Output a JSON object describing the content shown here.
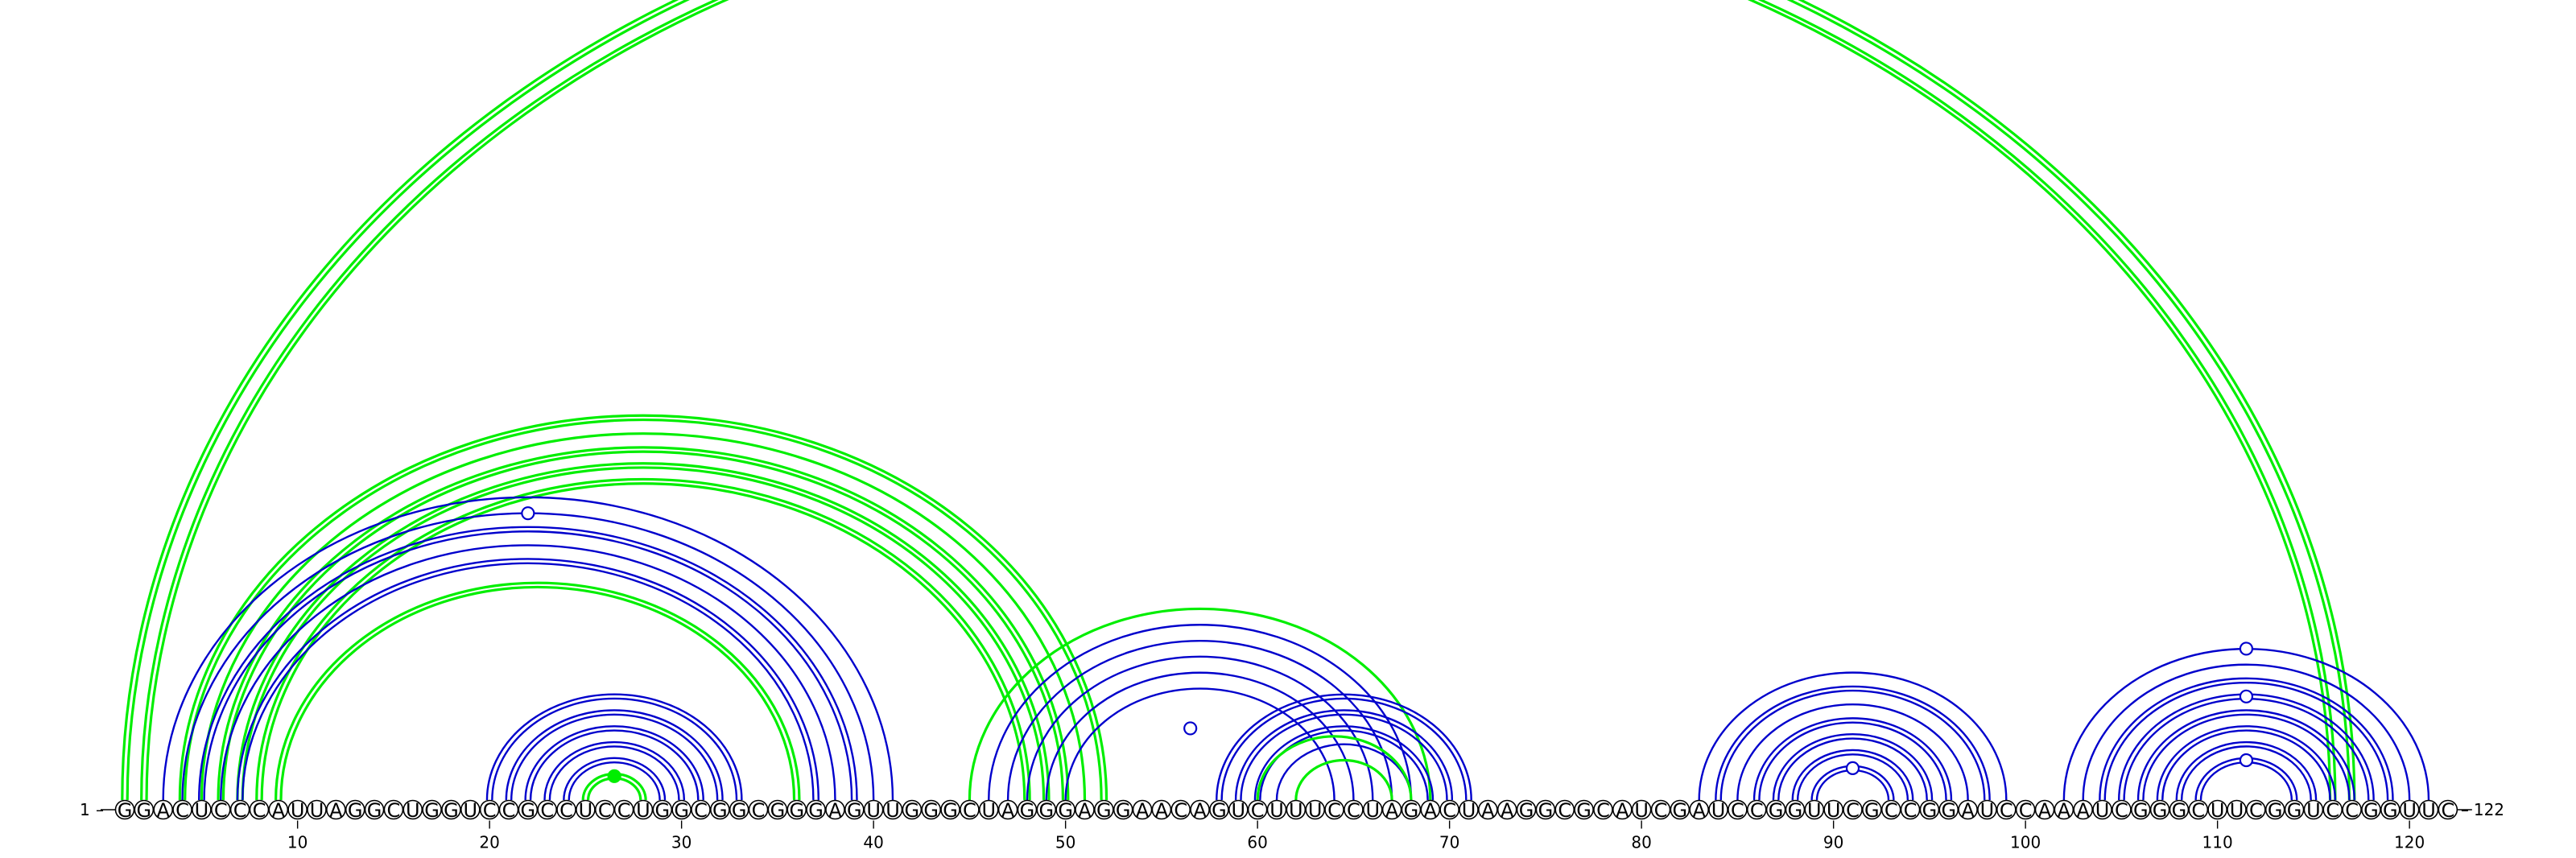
{
  "sequence": "GGACUCCCAUUAGGCUGGUCCGCCUCCUGGCGGCGGGAGUUGGGCUAGGGAGGAACAGUCUUUCCUAGACUAAGGCGCAUCGAUCCGGUUCGCCGGAUCCAAAUCGGGCUUCGGUCCGGUUC",
  "labels": {
    "start_index": "1",
    "start_dash": "–",
    "end_index": "122",
    "end_dash": "–"
  },
  "ticks": [
    "10",
    "20",
    "30",
    "40",
    "50",
    "60",
    "70",
    "80",
    "90",
    "100",
    "110",
    "120"
  ],
  "colors": {
    "green": "#00ee00",
    "blue": "#0000cc",
    "black": "#000000"
  },
  "arcs": [
    {
      "i": 1,
      "j": 117,
      "color": "green",
      "double": true
    },
    {
      "i": 2,
      "j": 116,
      "color": "green",
      "double": true
    },
    {
      "i": 4,
      "j": 52,
      "color": "green",
      "double": true
    },
    {
      "i": 5,
      "j": 51,
      "color": "green",
      "double": false
    },
    {
      "i": 6,
      "j": 50,
      "color": "green",
      "double": true
    },
    {
      "i": 7,
      "j": 49,
      "color": "green",
      "double": true
    },
    {
      "i": 8,
      "j": 48,
      "color": "green",
      "double": true
    },
    {
      "i": 9,
      "j": 36,
      "color": "green",
      "double": true
    },
    {
      "i": 3,
      "j": 41,
      "color": "blue",
      "double": false
    },
    {
      "i": 4,
      "j": 40,
      "color": "blue",
      "double": false
    },
    {
      "i": 5,
      "j": 39,
      "color": "blue",
      "double": true
    },
    {
      "i": 6,
      "j": 38,
      "color": "blue",
      "double": false
    },
    {
      "i": 7,
      "j": 37,
      "color": "blue",
      "double": true
    },
    {
      "i": 20,
      "j": 33,
      "color": "blue",
      "double": true
    },
    {
      "i": 21,
      "j": 32,
      "color": "blue",
      "double": true
    },
    {
      "i": 22,
      "j": 31,
      "color": "blue",
      "double": true
    },
    {
      "i": 23,
      "j": 30,
      "color": "blue",
      "double": true
    },
    {
      "i": 24,
      "j": 29,
      "color": "blue",
      "double": true
    },
    {
      "i": 25,
      "j": 28,
      "color": "green",
      "double": true
    },
    {
      "i": 45,
      "j": 69,
      "color": "green",
      "double": false
    },
    {
      "i": 46,
      "j": 68,
      "color": "blue",
      "double": false
    },
    {
      "i": 47,
      "j": 67,
      "color": "blue",
      "double": false
    },
    {
      "i": 48,
      "j": 66,
      "color": "blue",
      "double": false
    },
    {
      "i": 49,
      "j": 65,
      "color": "blue",
      "double": false
    },
    {
      "i": 50,
      "j": 64,
      "color": "blue",
      "double": false
    },
    {
      "i": 58,
      "j": 71,
      "color": "blue",
      "double": true
    },
    {
      "i": 59,
      "j": 70,
      "color": "blue",
      "double": true
    },
    {
      "i": 60,
      "j": 69,
      "color": "blue",
      "double": true
    },
    {
      "i": 61,
      "j": 68,
      "color": "blue",
      "double": false
    },
    {
      "i": 60,
      "j": 68,
      "color": "green",
      "double": false
    },
    {
      "i": 62,
      "j": 67,
      "color": "green",
      "double": false
    },
    {
      "i": 83,
      "j": 99,
      "color": "blue",
      "double": false
    },
    {
      "i": 84,
      "j": 98,
      "color": "blue",
      "double": true
    },
    {
      "i": 85,
      "j": 97,
      "color": "blue",
      "double": false
    },
    {
      "i": 86,
      "j": 96,
      "color": "blue",
      "double": true
    },
    {
      "i": 87,
      "j": 95,
      "color": "blue",
      "double": true
    },
    {
      "i": 88,
      "j": 94,
      "color": "blue",
      "double": true
    },
    {
      "i": 89,
      "j": 93,
      "color": "blue",
      "double": true
    },
    {
      "i": 102,
      "j": 121,
      "color": "blue",
      "double": false
    },
    {
      "i": 103,
      "j": 120,
      "color": "blue",
      "double": false
    },
    {
      "i": 104,
      "j": 119,
      "color": "blue",
      "double": true
    },
    {
      "i": 105,
      "j": 118,
      "color": "blue",
      "double": true
    },
    {
      "i": 106,
      "j": 117,
      "color": "blue",
      "double": true
    },
    {
      "i": 107,
      "j": 116,
      "color": "blue",
      "double": true
    },
    {
      "i": 108,
      "j": 115,
      "color": "blue",
      "double": true
    },
    {
      "i": 109,
      "j": 114,
      "color": "blue",
      "double": true
    }
  ],
  "markers": [
    {
      "i": 4,
      "j": 40,
      "fill": "white",
      "color": "blue"
    },
    {
      "i": 25,
      "j": 28,
      "fill": "green",
      "color": "green"
    },
    {
      "i": 52,
      "j": 61,
      "fill": "white",
      "color": "blue"
    },
    {
      "i": 89,
      "j": 93,
      "fill": "white",
      "color": "blue"
    },
    {
      "i": 102,
      "j": 121,
      "fill": "white",
      "color": "blue"
    },
    {
      "i": 105,
      "j": 118,
      "fill": "white",
      "color": "blue"
    },
    {
      "i": 109,
      "j": 114,
      "fill": "white",
      "color": "blue"
    }
  ]
}
